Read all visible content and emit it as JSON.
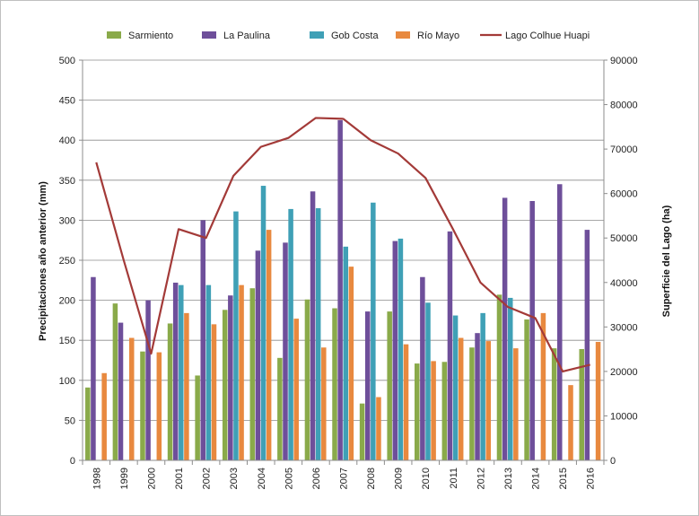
{
  "chart_data": {
    "type": "bar",
    "categories": [
      "1998",
      "1999",
      "2000",
      "2001",
      "2002",
      "2003",
      "2004",
      "2005",
      "2006",
      "2007",
      "2008",
      "2009",
      "2010",
      "2011",
      "2012",
      "2013",
      "2014",
      "2015",
      "2016"
    ],
    "series": [
      {
        "name": "Sarmiento",
        "color": "#8aaa4a",
        "axis": "left",
        "values": [
          91,
          196,
          136,
          171,
          106,
          188,
          215,
          128,
          201,
          190,
          71,
          186,
          121,
          123,
          141,
          207,
          176,
          140,
          139
        ]
      },
      {
        "name": "La Paulina",
        "color": "#6e4f9a",
        "axis": "left",
        "values": [
          229,
          172,
          200,
          222,
          300,
          206,
          262,
          272,
          336,
          425,
          186,
          274,
          229,
          286,
          159,
          328,
          324,
          345,
          288
        ]
      },
      {
        "name": "Gob Costa",
        "color": "#3fa0b6",
        "axis": "left",
        "values": [
          null,
          null,
          null,
          219,
          219,
          311,
          343,
          314,
          315,
          267,
          322,
          277,
          197,
          181,
          184,
          203,
          null,
          null,
          null
        ]
      },
      {
        "name": "Río Mayo",
        "color": "#e8893f",
        "axis": "left",
        "values": [
          109,
          153,
          135,
          184,
          170,
          219,
          288,
          177,
          141,
          242,
          79,
          145,
          124,
          153,
          149,
          140,
          184,
          94,
          148
        ]
      },
      {
        "name": "Lago Colhue Huapi",
        "color": "#a33a38",
        "type": "line",
        "axis": "right",
        "values": [
          67000,
          45000,
          24000,
          52000,
          50000,
          64000,
          70500,
          72500,
          77000,
          76800,
          72000,
          69000,
          63500,
          52000,
          40000,
          34500,
          32000,
          20000,
          21500
        ]
      }
    ],
    "ylabel": "Precipitaciones año anterior (mm)",
    "y2label": "Superficie del Lago (ha)",
    "ylim": [
      0,
      500
    ],
    "y2lim": [
      0,
      90000
    ],
    "yticks": [
      "0",
      "50",
      "100",
      "150",
      "200",
      "250",
      "300",
      "350",
      "400",
      "450",
      "500"
    ],
    "y2ticks": [
      "0",
      "10000",
      "20000",
      "30000",
      "40000",
      "50000",
      "60000",
      "70000",
      "80000",
      "90000"
    ],
    "grid": true,
    "legend_position": "top"
  }
}
